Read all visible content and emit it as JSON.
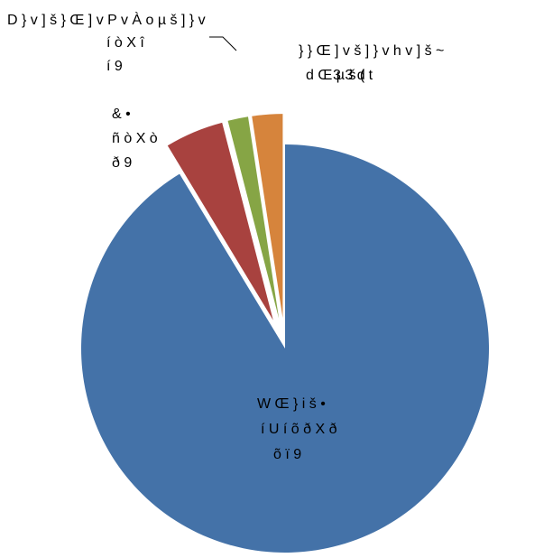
{
  "chart_data": {
    "type": "pie",
    "title": "",
    "slices": [
      {
        "label_lines": [
          "W Œ } i š •",
          "í U í õ ð X ð",
          "õ ï 9"
        ],
        "value": 90.7,
        "color": "#4472a8",
        "exploded": false
      },
      {
        "label_lines": [
          "&  •",
          "ñ ò X ò",
          "ð 9"
        ],
        "value": 4.6,
        "color": "#a8423f",
        "exploded": true
      },
      {
        "label_lines": [
          "D } v ] š } Œ ] v P  v  À o µ  š ] } v",
          "í ò X î",
          "í 9"
        ],
        "value": 1.6,
        "color": "#86a545",
        "exploded": true
      },
      {
        "label_lines": [
          "} } Œ  ] v  š ] } v  h v ] š  ~",
          "d Œ µ  š  ( t"
        ],
        "value": 2.4,
        "color": "#d6843c",
        "exploded": true
      }
    ],
    "overlap_text": "3 3 d",
    "legend": "none"
  }
}
